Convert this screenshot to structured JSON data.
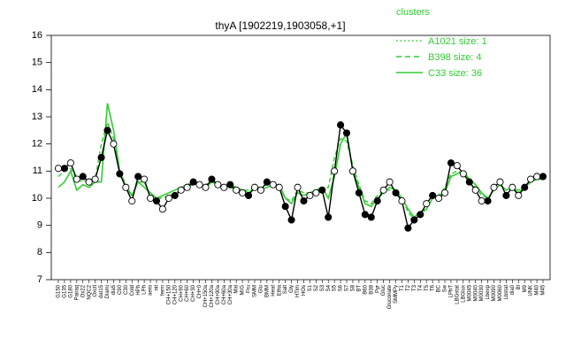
{
  "chart_data": {
    "type": "line",
    "title": "thyA [1902219,1903058,+1]",
    "xlabel": "",
    "ylabel": "",
    "ylim": [
      7,
      16
    ],
    "yticks": [
      7,
      8,
      9,
      10,
      11,
      12,
      13,
      14,
      15,
      16
    ],
    "grid": false,
    "legend": {
      "title": "clusters",
      "placement": "top-right",
      "color": "#33cc33",
      "entries": [
        {
          "label": "A1021 size: 1",
          "style": "dotted"
        },
        {
          "label": "B398 size: 4",
          "style": "dashed"
        },
        {
          "label": "C33 size: 36",
          "style": "solid"
        }
      ]
    },
    "x_tick_labels": [
      "G150",
      "G135",
      "G180",
      "Pairaq",
      "Ox22",
      "NQC2",
      "Oxctl",
      "dat15",
      "Diami",
      "dia5",
      "C90",
      "C30",
      "Cold",
      "HPh",
      "LPh",
      "aero",
      "nit",
      "ferm",
      "CH+150",
      "CH+120",
      "CH+90",
      "CH+60",
      "CH+30",
      "CH+0",
      "CH+150a",
      "CH+120a",
      "CH+90a",
      "CH+60a",
      "CH+30a",
      "Mal",
      "M/G",
      "Fru",
      "SMM",
      "Glu",
      "BMM",
      "Heat",
      "Etha",
      "Salt",
      "Gly",
      "HTim",
      "HOs",
      "S1",
      "S2",
      "S3",
      "S4",
      "S5",
      "S6",
      "S7",
      "S8",
      "BT",
      "B60",
      "B38",
      "Pyr",
      "Gluc",
      "Gluconate",
      "SMMPy",
      "T1",
      "T2",
      "T3",
      "T4",
      "T5",
      "T6",
      "BC",
      "Sw",
      "LPhT",
      "LBGstat",
      "LBGlux",
      "M0045",
      "M0040",
      "M0030",
      "Lbexp",
      "M0090",
      "M0060",
      "Lbstat",
      "dia0",
      "Bl",
      "M9",
      "UNK",
      "M40",
      "M45"
    ],
    "series": [
      {
        "name": "",
        "role": "cluster C33 median",
        "style": "solid",
        "color": "#33cc33",
        "values": [
          10.4,
          10.6,
          11.0,
          10.3,
          10.5,
          10.4,
          10.6,
          10.6,
          13.5,
          12.5,
          11.0,
          10.4,
          10.1,
          10.6,
          10.4,
          10.2,
          10.0,
          10.1,
          10.2,
          10.3,
          10.4,
          10.5,
          10.6,
          10.5,
          10.4,
          10.6,
          10.5,
          10.4,
          10.5,
          10.4,
          10.3,
          10.2,
          10.4,
          10.3,
          10.4,
          10.5,
          10.5,
          10.0,
          9.8,
          10.2,
          10.1,
          10.2,
          10.3,
          10.4,
          10.0,
          10.8,
          12.0,
          12.4,
          11.0,
          10.4,
          9.8,
          9.7,
          10.0,
          10.2,
          10.4,
          10.3,
          10.0,
          9.6,
          9.3,
          9.5,
          9.6,
          10.0,
          10.1,
          10.2,
          10.8,
          10.9,
          11.0,
          10.7,
          10.5,
          10.2,
          10.0,
          10.3,
          10.5,
          10.3,
          10.4,
          10.2,
          10.4,
          10.6,
          10.7,
          10.7
        ]
      },
      {
        "name": "",
        "role": "cluster B398 median",
        "style": "dashed",
        "color": "#33cc33",
        "values": [
          10.8,
          11.0,
          11.1,
          10.7,
          10.6,
          10.7,
          10.7,
          12.0,
          12.8,
          12.2,
          11.0,
          10.5,
          10.1,
          10.6,
          10.6,
          10.1,
          10.0,
          10.0,
          10.1,
          10.2,
          10.3,
          10.4,
          10.5,
          10.5,
          10.5,
          10.6,
          10.5,
          10.5,
          10.4,
          10.3,
          10.3,
          10.3,
          10.4,
          10.4,
          10.5,
          10.4,
          10.4,
          10.0,
          9.9,
          10.3,
          10.2,
          10.2,
          10.3,
          10.3,
          10.4,
          11.5,
          12.2,
          12.1,
          11.2,
          10.5,
          9.9,
          9.8,
          10.1,
          10.3,
          10.3,
          10.2,
          10.0,
          9.5,
          9.2,
          9.4,
          9.6,
          10.0,
          10.1,
          10.4,
          10.9,
          11.0,
          10.9,
          10.7,
          10.4,
          10.1,
          10.0,
          10.3,
          10.5,
          10.3,
          10.4,
          10.3,
          10.4,
          10.6,
          10.7,
          10.8
        ]
      },
      {
        "name": "",
        "role": "gene thyA expression",
        "style": "black line with points",
        "color": "#000000",
        "values": [
          11.1,
          11.1,
          11.3,
          10.7,
          10.8,
          10.6,
          10.7,
          11.5,
          12.5,
          12.0,
          10.9,
          10.4,
          9.9,
          10.8,
          10.7,
          10.0,
          9.9,
          9.6,
          10.0,
          10.1,
          10.3,
          10.4,
          10.6,
          10.5,
          10.4,
          10.7,
          10.5,
          10.4,
          10.5,
          10.3,
          10.2,
          10.1,
          10.4,
          10.3,
          10.6,
          10.5,
          10.4,
          9.7,
          9.2,
          10.4,
          9.9,
          10.1,
          10.2,
          10.3,
          9.3,
          11.0,
          12.7,
          12.4,
          11.0,
          10.2,
          9.4,
          9.3,
          9.9,
          10.3,
          10.6,
          10.2,
          9.9,
          8.9,
          9.2,
          9.4,
          9.8,
          10.1,
          10.0,
          10.2,
          11.3,
          11.2,
          10.9,
          10.6,
          10.3,
          9.9,
          9.9,
          10.4,
          10.6,
          10.1,
          10.4,
          10.1,
          10.4,
          10.7,
          10.8,
          10.8
        ]
      }
    ]
  }
}
